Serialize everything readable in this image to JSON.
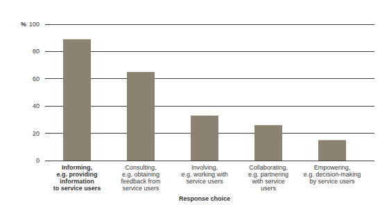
{
  "chart_data": {
    "type": "bar",
    "y_label": "%",
    "x_label": "Response choice",
    "categories": [
      "Informing,\ne.g. providing\ninformation\nto service users",
      "Consulting,\ne.g. obtaining\nfeedback from\nservice users",
      "Involving,\ne.g. working with\nservice users",
      "Collaborating,\ne.g. partnering\nwith service\nusers",
      "Empowering,\ne.g. decision-making\nby service users"
    ],
    "values": [
      89,
      65,
      33,
      26,
      15
    ],
    "color": "#8c8272",
    "ylim": [
      0,
      100
    ],
    "yticks": [
      0,
      20,
      40,
      60,
      80,
      100
    ],
    "grid": true
  }
}
